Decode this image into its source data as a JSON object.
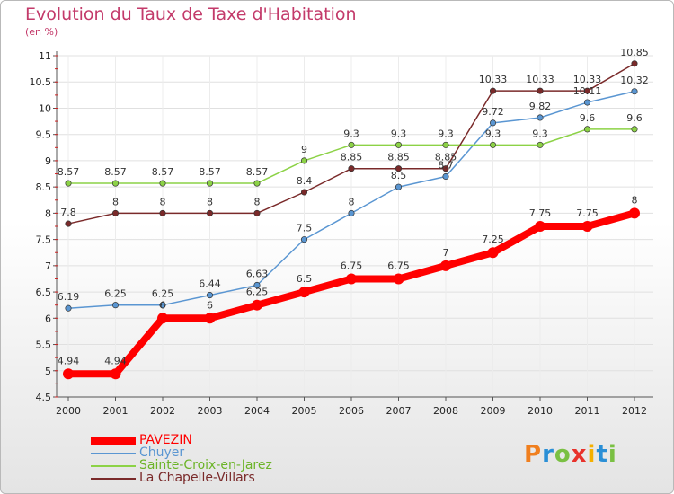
{
  "title": "Evolution du Taux de Taxe d'Habitation",
  "subtitle": "(en %)",
  "logo": "Proxiti",
  "chart_data": {
    "type": "line",
    "x": [
      "2000",
      "2001",
      "2002",
      "2003",
      "2004",
      "2005",
      "2006",
      "2007",
      "2008",
      "2009",
      "2010",
      "2011",
      "2012"
    ],
    "ylim": [
      4.5,
      11
    ],
    "yticks": [
      "4.5",
      "5",
      "5.5",
      "6",
      "6.5",
      "7",
      "7.5",
      "8",
      "8.5",
      "9",
      "9.5",
      "10",
      "10.5",
      "11"
    ],
    "grid": true,
    "legend_position": "bottom-left",
    "series": [
      {
        "name": "PAVEZIN",
        "color": "#ff0000",
        "values": [
          4.94,
          4.94,
          6,
          6,
          6.25,
          6.5,
          6.75,
          6.75,
          7,
          7.25,
          7.75,
          7.75,
          8
        ],
        "labels": [
          "4.94",
          "4.94",
          "6",
          "6",
          "6.25",
          "6.5",
          "6.75",
          "6.75",
          "7",
          "7.25",
          "7.75",
          "7.75",
          "8"
        ]
      },
      {
        "name": "Chuyer",
        "color": "#5a96d2",
        "values": [
          6.19,
          6.25,
          6.25,
          6.44,
          6.63,
          7.5,
          8,
          8.5,
          8.7,
          9.72,
          9.82,
          10.11,
          10.32
        ],
        "labels": [
          "6.19",
          "6.25",
          "6.25",
          "6.44",
          "6.63",
          "7.5",
          "8",
          "8.5",
          "8.7",
          "9.72",
          "9.82",
          "10.11",
          "10.32"
        ]
      },
      {
        "name": "Sainte-Croix-en-Jarez",
        "color": "#8cd246",
        "values": [
          8.57,
          8.57,
          8.57,
          8.57,
          8.57,
          9,
          9.3,
          9.3,
          9.3,
          9.3,
          9.3,
          9.6,
          9.6
        ],
        "labels": [
          "8.57",
          "8.57",
          "8.57",
          "8.57",
          "8.57",
          "9",
          "9.3",
          "9.3",
          "9.3",
          "9.3",
          "9.3",
          "9.6",
          "9.6"
        ]
      },
      {
        "name": "La Chapelle-Villars",
        "color": "#7a2a2a",
        "values": [
          7.8,
          8,
          8,
          8,
          8,
          8.4,
          8.85,
          8.85,
          8.85,
          10.33,
          10.33,
          10.33,
          10.85
        ],
        "labels": [
          "7.8",
          "8",
          "8",
          "8",
          "8",
          "8.4",
          "8.85",
          "8.85",
          "8.85",
          "10.33",
          "10.33",
          "10.33",
          "10.85"
        ]
      }
    ]
  }
}
